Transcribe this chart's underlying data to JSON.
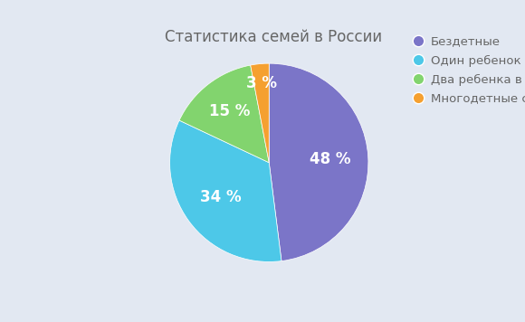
{
  "title": "Статистика семей в России",
  "labels": [
    "Бездетные",
    "Один ребенок в семье",
    "Два ребенка в семье",
    "Многодетные семьи"
  ],
  "values": [
    48,
    34,
    15,
    3
  ],
  "colors": [
    "#7B75C8",
    "#4DC8E8",
    "#82D46E",
    "#F5A030"
  ],
  "pct_labels": [
    "48 %",
    "34 %",
    "15 %",
    "3 %"
  ],
  "background_color": "#E2E8F2",
  "text_color": "#FFFFFF",
  "title_color": "#666666",
  "title_fontsize": 12,
  "pct_fontsize": 12,
  "legend_fontsize": 9.5,
  "startangle": 90
}
